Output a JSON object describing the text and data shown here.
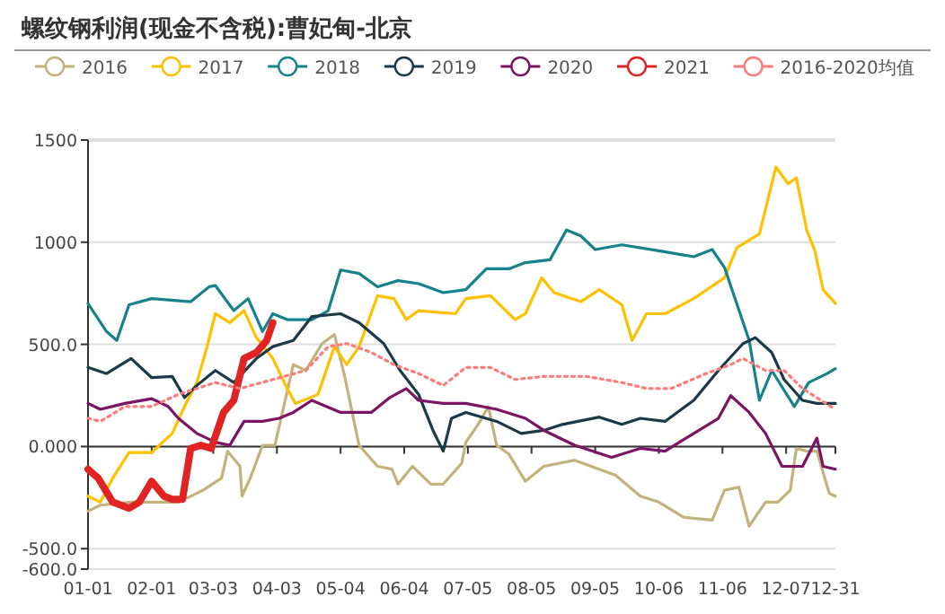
{
  "chart_data": {
    "type": "line",
    "title": "螺纹钢利润(现金不含税):曹妃甸-北京",
    "xlim": [
      "--01-01",
      "--12-31"
    ],
    "xticks": [
      {
        "value": "--01-01",
        "label": "01-01"
      },
      {
        "value": "--02-01",
        "label": "02-01"
      },
      {
        "value": "--03-03",
        "label": "03-03"
      },
      {
        "value": "--04-03",
        "label": "04-03"
      },
      {
        "value": "--05-04",
        "label": "05-04"
      },
      {
        "value": "--06-04",
        "label": "06-04"
      },
      {
        "value": "--07-05",
        "label": "07-05"
      },
      {
        "value": "--08-05",
        "label": "08-05"
      },
      {
        "value": "--09-05",
        "label": "09-05"
      },
      {
        "value": "--10-06",
        "label": "10-06"
      },
      {
        "value": "--11-06",
        "label": "11-06"
      },
      {
        "value": "--12-07",
        "label": "12-07"
      },
      {
        "value": "--12-31",
        "label": "12-31"
      }
    ],
    "ylim": [
      -600,
      1500
    ],
    "yticks": [
      {
        "value": -600,
        "label": "-600.0"
      },
      {
        "value": -500,
        "label": "-500.0"
      },
      {
        "value": 0,
        "label": "0.000"
      },
      {
        "value": 500,
        "label": "500.0"
      },
      1000,
      1500
    ],
    "grid": "y",
    "legend": "top",
    "series": [
      {
        "name": "2016",
        "color": "#c2b27c",
        "x": [
          "--01-01",
          "--01-07",
          "--01-22",
          "--02-14",
          "--02-26",
          "--03-07",
          "--03-10",
          "--03-16",
          "--03-17",
          "--03-21",
          "--03-27",
          "--04-02",
          "--04-11",
          "--04-17",
          "--04-25",
          "--05-01",
          "--05-06",
          "--05-13",
          "--05-22",
          "--05-29",
          "--06-01",
          "--06-08",
          "--06-17",
          "--06-23",
          "--07-02",
          "--07-04",
          "--07-10",
          "--07-15",
          "--07-19",
          "--07-25",
          "--08-02",
          "--08-11",
          "--08-26",
          "--09-15",
          "--09-27",
          "--10-06",
          "--10-18",
          "--11-01",
          "--11-07",
          "--11-14",
          "--11-19",
          "--11-27",
          "--12-03",
          "--12-09",
          "--12-12",
          "--12-17",
          "--12-22",
          "--12-28",
          "--12-31"
        ],
        "values": [
          -316,
          -287,
          -272,
          -272,
          -214,
          -155,
          -23,
          -97,
          -243,
          -155,
          6,
          6,
          401,
          372,
          504,
          548,
          343,
          6,
          -97,
          -111,
          -184,
          -97,
          -184,
          -184,
          -82,
          21,
          108,
          196,
          6,
          -38,
          -170,
          -97,
          -67,
          -141,
          -243,
          -272,
          -346,
          -360,
          -214,
          -199,
          -390,
          -272,
          -272,
          -214,
          -9,
          -23,
          -23,
          -229,
          -243
        ]
      },
      {
        "name": "2017",
        "color": "#ffc000",
        "x": [
          "--01-01",
          "--01-07",
          "--01-13",
          "--01-21",
          "--02-01",
          "--02-11",
          "--02-17",
          "--02-23",
          "--02-28",
          "--03-04",
          "--03-11",
          "--03-18",
          "--03-24",
          "--04-01",
          "--04-08",
          "--04-12",
          "--04-23",
          "--05-01",
          "--05-07",
          "--05-13",
          "--05-22",
          "--05-30",
          "--06-05",
          "--06-11",
          "--06-29",
          "--07-04",
          "--07-16",
          "--07-28",
          "--08-02",
          "--08-10",
          "--08-16",
          "--08-29",
          "--09-07",
          "--09-18",
          "--09-23",
          "--09-30",
          "--10-09",
          "--10-23",
          "--11-07",
          "--11-13",
          "--11-24",
          "--12-02",
          "--12-08",
          "--12-12",
          "--12-17",
          "--12-21",
          "--12-25",
          "--12-31"
        ],
        "values": [
          -243,
          -272,
          -155,
          -29,
          -29,
          64,
          196,
          313,
          489,
          650,
          606,
          665,
          533,
          431,
          284,
          211,
          255,
          489,
          401,
          489,
          738,
          724,
          621,
          665,
          650,
          724,
          738,
          621,
          650,
          826,
          753,
          709,
          768,
          694,
          519,
          650,
          650,
          724,
          826,
          973,
          1040,
          1368,
          1286,
          1315,
          1060,
          958,
          768,
          700
        ]
      },
      {
        "name": "2018",
        "color": "#17818c",
        "x": [
          "--01-01",
          "--01-10",
          "--01-15",
          "--01-21",
          "--02-01",
          "--02-20",
          "--03-01",
          "--03-04",
          "--03-13",
          "--03-20",
          "--03-27",
          "--04-01",
          "--04-08",
          "--04-20",
          "--04-28",
          "--05-04",
          "--05-13",
          "--05-22",
          "--06-01",
          "--06-11",
          "--06-23",
          "--07-04",
          "--07-14",
          "--07-25",
          "--08-02",
          "--08-14",
          "--08-22",
          "--08-29",
          "--09-05",
          "--09-18",
          "--10-06",
          "--10-23",
          "--11-01",
          "--11-07",
          "--11-19",
          "--11-24",
          "--11-30",
          "--12-11",
          "--12-18",
          "--12-27",
          "--12-31"
        ],
        "values": [
          700,
          563,
          519,
          694,
          724,
          709,
          782,
          788,
          665,
          724,
          563,
          650,
          621,
          621,
          665,
          864,
          847,
          782,
          812,
          797,
          753,
          768,
          870,
          870,
          900,
          914,
          1060,
          1031,
          964,
          987,
          958,
          929,
          964,
          876,
          519,
          226,
          372,
          196,
          313,
          357,
          381
        ]
      },
      {
        "name": "2019",
        "color": "#1b3a48",
        "x": [
          "--01-01",
          "--01-10",
          "--01-22",
          "--02-01",
          "--02-11",
          "--02-17",
          "--02-23",
          "--03-04",
          "--03-13",
          "--03-24",
          "--04-01",
          "--04-11",
          "--04-20",
          "--05-04",
          "--05-13",
          "--05-25",
          "--06-02",
          "--06-11",
          "--06-18",
          "--06-23",
          "--06-27",
          "--07-04",
          "--07-19",
          "--07-31",
          "--08-11",
          "--08-20",
          "--09-07",
          "--09-18",
          "--09-27",
          "--10-09",
          "--10-23",
          "--11-04",
          "--11-16",
          "--11-22",
          "--11-30",
          "--12-06",
          "--12-15",
          "--12-22",
          "--12-31"
        ],
        "values": [
          387,
          357,
          431,
          337,
          343,
          240,
          299,
          372,
          313,
          431,
          489,
          519,
          636,
          650,
          606,
          504,
          372,
          255,
          79,
          -23,
          138,
          167,
          123,
          64,
          79,
          108,
          144,
          108,
          138,
          123,
          226,
          372,
          504,
          533,
          460,
          328,
          226,
          211,
          211
        ]
      },
      {
        "name": "2020",
        "color": "#7b1462",
        "x": [
          "--01-01",
          "--01-07",
          "--01-19",
          "--02-01",
          "--02-09",
          "--02-14",
          "--02-23",
          "--03-04",
          "--03-11",
          "--03-18",
          "--03-27",
          "--04-04",
          "--04-11",
          "--04-20",
          "--05-04",
          "--05-19",
          "--05-28",
          "--06-05",
          "--06-11",
          "--06-23",
          "--07-04",
          "--07-19",
          "--08-02",
          "--08-11",
          "--08-26",
          "--09-13",
          "--09-27",
          "--10-09",
          "--10-23",
          "--11-04",
          "--11-10",
          "--11-19",
          "--11-27",
          "--12-05",
          "--12-15",
          "--12-22",
          "--12-25",
          "--12-31"
        ],
        "values": [
          211,
          182,
          211,
          234,
          196,
          138,
          64,
          21,
          6,
          123,
          123,
          138,
          167,
          226,
          167,
          167,
          240,
          284,
          226,
          211,
          211,
          182,
          138,
          79,
          6,
          -53,
          -9,
          -23,
          64,
          138,
          249,
          167,
          64,
          -97,
          -97,
          41,
          -97,
          -111
        ]
      },
      {
        "name": "2021",
        "color": "#e02424",
        "x": [
          "--01-01",
          "--01-06",
          "--01-13",
          "--01-21",
          "--01-26",
          "--02-01",
          "--02-07",
          "--02-11",
          "--02-16",
          "--02-20",
          "--02-25",
          "--03-02",
          "--03-08",
          "--03-13",
          "--03-18",
          "--03-24",
          "--03-29",
          "--04-01"
        ],
        "values": [
          -111,
          -155,
          -272,
          -302,
          -272,
          -170,
          -243,
          -258,
          -258,
          -9,
          6,
          -9,
          167,
          226,
          431,
          460,
          519,
          606
        ]
      },
      {
        "name": "2016-2020均值",
        "color": "#ff7a7a",
        "line_style": "dotted",
        "x": [
          "--01-01",
          "--01-07",
          "--01-19",
          "--02-01",
          "--02-14",
          "--03-04",
          "--03-16",
          "--04-01",
          "--04-17",
          "--04-28",
          "--05-07",
          "--05-19",
          "--05-30",
          "--06-11",
          "--06-23",
          "--07-04",
          "--07-16",
          "--07-28",
          "--08-11",
          "--09-01",
          "--09-18",
          "--09-30",
          "--10-12",
          "--10-29",
          "--11-10",
          "--11-16",
          "--11-27",
          "--12-06",
          "--12-15",
          "--12-24",
          "--12-31"
        ],
        "values": [
          138,
          123,
          196,
          196,
          255,
          313,
          284,
          328,
          372,
          489,
          504,
          460,
          401,
          357,
          299,
          387,
          387,
          328,
          343,
          343,
          313,
          284,
          284,
          357,
          401,
          431,
          372,
          372,
          284,
          226,
          182
        ]
      }
    ]
  }
}
